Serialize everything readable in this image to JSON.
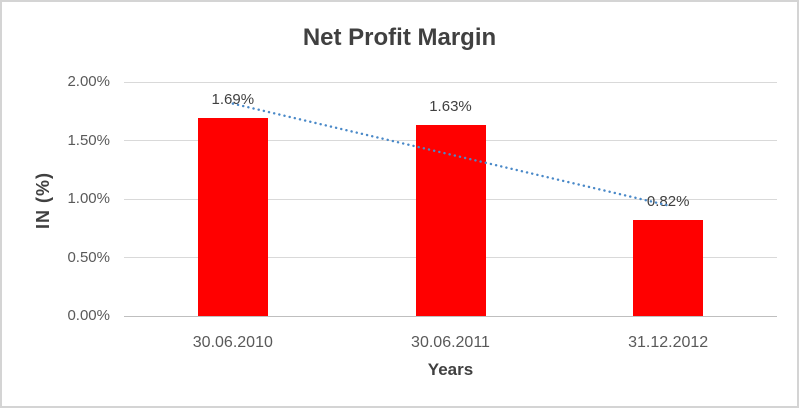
{
  "chart_data": {
    "type": "bar",
    "title": "Net Profit Margin",
    "categories": [
      "30.06.2010",
      "30.06.2011",
      "31.12.2012"
    ],
    "values": [
      1.69,
      1.63,
      0.82
    ],
    "data_labels": [
      "1.69%",
      "1.63%",
      "0.82%"
    ],
    "xlabel": "Years",
    "ylabel": "IN (%)",
    "ylim": [
      0,
      2.0
    ],
    "ytick_step": 0.5,
    "ytick_labels": [
      "0.00%",
      "0.50%",
      "1.00%",
      "1.50%",
      "2.00%"
    ],
    "grid": true,
    "legend": "none",
    "bar_color": "#ff0000",
    "trendline": {
      "type": "linear",
      "style": "dotted",
      "color": "#4a89c8"
    },
    "colors": {
      "title_text": "#404040",
      "tick_text": "#595959",
      "axis_title_text": "#404040",
      "gridline": "#d9d9d9",
      "axis_line": "#bfbfbf",
      "frame_border": "#d4d4d4",
      "background": "#ffffff"
    }
  }
}
